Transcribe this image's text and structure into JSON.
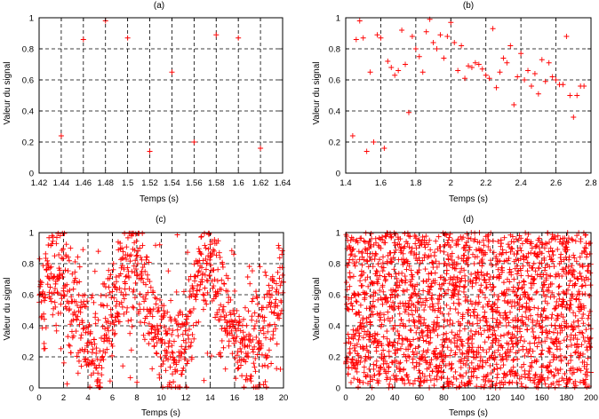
{
  "colors": {
    "marker": "#ff0000",
    "axis": "#000000",
    "grid": "#000000",
    "background": "#ffffff"
  },
  "chart_data": [
    {
      "id": "a",
      "type": "scatter",
      "title": "(a)",
      "xlabel": "Temps (s)",
      "ylabel": "Valeur du signal",
      "xlim": [
        1.42,
        1.64
      ],
      "ylim": [
        0,
        1
      ],
      "grid": true,
      "marker": "+",
      "xticks": [
        1.42,
        1.44,
        1.46,
        1.48,
        1.5,
        1.52,
        1.54,
        1.56,
        1.58,
        1.6,
        1.62,
        1.64
      ],
      "xtick_labels": [
        "1.42",
        "1.44",
        "1.46",
        "1.48",
        "1.5",
        "1.52",
        "1.54",
        "1.56",
        "1.58",
        "1.6",
        "1.62",
        "1.64"
      ],
      "yticks": [
        0,
        0.2,
        0.4,
        0.6,
        0.8,
        1
      ],
      "ytick_labels": [
        "0",
        "0.2",
        "0.4",
        "0.6",
        "0.8",
        "1"
      ],
      "points": {
        "x": [
          1.44,
          1.46,
          1.48,
          1.5,
          1.52,
          1.54,
          1.56,
          1.58,
          1.6,
          1.62
        ],
        "y": [
          0.24,
          0.86,
          0.98,
          0.87,
          0.14,
          0.65,
          0.2,
          0.89,
          0.87,
          0.16
        ]
      }
    },
    {
      "id": "b",
      "type": "scatter",
      "title": "(b)",
      "xlabel": "Temps (s)",
      "ylabel": "Valeur du signal",
      "xlim": [
        1.4,
        2.8
      ],
      "ylim": [
        0,
        1
      ],
      "grid": true,
      "marker": "+",
      "xticks": [
        1.4,
        1.6,
        1.8,
        2,
        2.2,
        2.4,
        2.6,
        2.8
      ],
      "xtick_labels": [
        "1.4",
        "1.6",
        "1.8",
        "2",
        "2.2",
        "2.4",
        "2.6",
        "2.8"
      ],
      "yticks": [
        0,
        0.2,
        0.4,
        0.6,
        0.8,
        1
      ],
      "ytick_labels": [
        "0",
        "0.2",
        "0.4",
        "0.6",
        "0.8",
        "1"
      ],
      "points": {
        "x": [
          1.44,
          1.46,
          1.48,
          1.5,
          1.52,
          1.54,
          1.56,
          1.58,
          1.6,
          1.62,
          1.64,
          1.66,
          1.68,
          1.7,
          1.72,
          1.74,
          1.76,
          1.78,
          1.8,
          1.82,
          1.84,
          1.86,
          1.88,
          1.9,
          1.92,
          1.94,
          1.96,
          1.98,
          2.0,
          2.02,
          2.04,
          2.06,
          2.08,
          2.1,
          2.12,
          2.14,
          2.16,
          2.18,
          2.2,
          2.22,
          2.24,
          2.26,
          2.28,
          2.3,
          2.32,
          2.34,
          2.36,
          2.38,
          2.4,
          2.42,
          2.44,
          2.46,
          2.48,
          2.5,
          2.52,
          2.54,
          2.56,
          2.58,
          2.6,
          2.62,
          2.64,
          2.66,
          2.68,
          2.7,
          2.72,
          2.74,
          2.76
        ],
        "y": [
          0.24,
          0.86,
          0.98,
          0.87,
          0.14,
          0.65,
          0.2,
          0.89,
          0.87,
          0.16,
          0.72,
          0.68,
          0.63,
          0.66,
          0.92,
          0.7,
          0.39,
          0.88,
          0.8,
          0.75,
          0.65,
          0.91,
          0.99,
          0.84,
          0.8,
          0.89,
          0.74,
          0.88,
          0.97,
          0.84,
          0.66,
          0.82,
          0.61,
          0.69,
          0.68,
          0.71,
          0.7,
          0.67,
          0.63,
          0.61,
          0.93,
          0.55,
          0.65,
          0.74,
          0.71,
          0.82,
          0.44,
          0.62,
          0.77,
          0.6,
          0.66,
          0.56,
          0.64,
          0.51,
          0.73,
          0.59,
          0.71,
          0.62,
          0.6,
          0.57,
          0.57,
          0.88,
          0.5,
          0.36,
          0.5,
          0.56,
          0.56
        ]
      }
    },
    {
      "id": "c",
      "type": "scatter",
      "title": "(c)",
      "xlabel": "Temps (s)",
      "ylabel": "Valeur du signal",
      "xlim": [
        0,
        20
      ],
      "ylim": [
        0,
        1
      ],
      "grid": true,
      "marker": "+",
      "xticks": [
        0,
        2,
        4,
        6,
        8,
        10,
        12,
        14,
        16,
        18,
        20
      ],
      "xtick_labels": [
        "0",
        "2",
        "4",
        "6",
        "8",
        "10",
        "12",
        "14",
        "16",
        "18",
        "20"
      ],
      "yticks": [
        0,
        0.2,
        0.4,
        0.6,
        0.8,
        1
      ],
      "ytick_labels": [
        "0",
        "0.2",
        "0.4",
        "0.6",
        "0.8",
        "1"
      ],
      "points": {
        "x": [],
        "y": []
      },
      "density": {
        "x_step": 0.02,
        "trend_x": [
          0,
          1,
          2,
          3,
          4,
          5,
          6,
          7,
          8,
          9,
          10,
          11,
          12,
          13,
          14,
          15,
          16,
          17,
          18,
          19,
          20
        ],
        "trend_y": [
          0.6,
          0.75,
          0.7,
          0.5,
          0.3,
          0.25,
          0.5,
          0.75,
          0.8,
          0.5,
          0.3,
          0.2,
          0.35,
          0.75,
          0.8,
          0.45,
          0.35,
          0.25,
          0.3,
          0.5,
          0.65
        ],
        "spread": 0.16
      }
    },
    {
      "id": "d",
      "type": "scatter",
      "title": "(d)",
      "xlabel": "Temps (s)",
      "ylabel": "Valeur du signal",
      "xlim": [
        0,
        200
      ],
      "ylim": [
        0,
        1
      ],
      "grid": true,
      "marker": "+",
      "xticks": [
        0,
        20,
        40,
        60,
        80,
        100,
        120,
        140,
        160,
        180,
        200
      ],
      "xtick_labels": [
        "0",
        "20",
        "40",
        "60",
        "80",
        "100",
        "120",
        "140",
        "160",
        "180",
        "200"
      ],
      "yticks": [
        0,
        0.2,
        0.4,
        0.6,
        0.8,
        1
      ],
      "ytick_labels": [
        "0",
        "0.2",
        "0.4",
        "0.6",
        "0.8",
        "1"
      ],
      "points": {
        "x": [],
        "y": []
      },
      "density": {
        "x_step": 0.1,
        "distribution": "uniform",
        "y_range": [
          0,
          1
        ]
      }
    }
  ]
}
